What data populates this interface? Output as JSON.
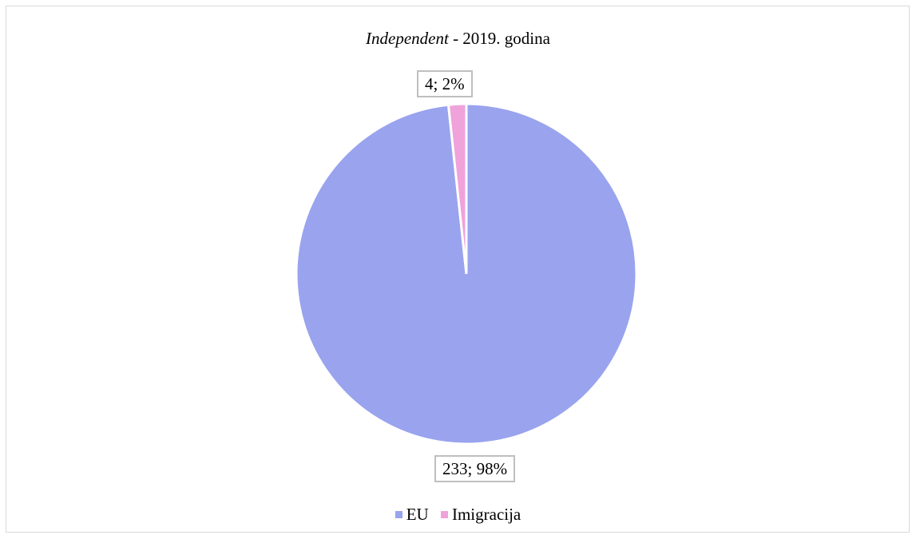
{
  "chart_data": {
    "type": "pie",
    "title_italic": "Independent",
    "title_rest": " - 2019. godina",
    "slices": [
      {
        "name": "EU",
        "value": 233,
        "percent": "98%",
        "label": "233; 98%",
        "color": "#99a3ee"
      },
      {
        "name": "Imigracija",
        "value": 4,
        "percent": "2%",
        "label": "4; 2%",
        "color": "#f0a2da"
      }
    ],
    "legend_position": "bottom"
  }
}
